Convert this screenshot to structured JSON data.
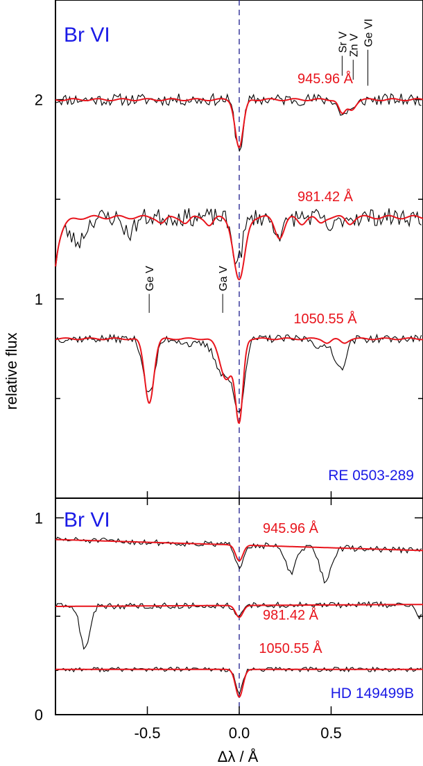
{
  "chart_data": {
    "type": "line",
    "x_axis": {
      "label": "Δλ / Å",
      "range": [
        -1.0,
        1.0
      ],
      "ticks": [
        -0.5,
        0.0,
        0.5
      ],
      "tick_labels": [
        "-0.5",
        "0.0",
        "0.5"
      ]
    },
    "y_axis_label": "relative flux",
    "reference_line_x": 0.0,
    "colors": {
      "observation": "#000000",
      "model": "#e8141c",
      "labels": "#1a1ae6",
      "reference_line": "#1a1a8c"
    },
    "panels": [
      {
        "star": "RE 0503-289",
        "ion": "Br VI",
        "ylim": [
          0.0,
          2.5
        ],
        "y_ticks": [
          1,
          2
        ],
        "y_minor_ticks": [
          0.5,
          1.5
        ],
        "tick_labels": [
          "1",
          "2"
        ],
        "lines": [
          {
            "label": "945.96 Å",
            "continuum": 2.0,
            "model_dips": [
              {
                "center": 0.0,
                "depth": 0.24,
                "width": 0.022
              },
              {
                "center": 0.56,
                "depth": 0.07,
                "width": 0.018
              },
              {
                "center": 0.61,
                "depth": 0.05,
                "width": 0.022
              }
            ],
            "model_wiggle": 0.005,
            "obs_dips": [
              {
                "center": 0.0,
                "depth": 0.25,
                "width": 0.022
              },
              {
                "center": 0.56,
                "depth": 0.08,
                "width": 0.02
              },
              {
                "center": 0.62,
                "depth": 0.05,
                "width": 0.025
              }
            ],
            "noise": 0.03,
            "seed": 11
          },
          {
            "label": "981.42 Å",
            "continuum": 1.41,
            "edge_drop": {
              "depth": 0.24,
              "scale": 0.03
            },
            "model_dips": [
              {
                "center": 0.0,
                "depth": 0.32,
                "width": 0.03
              },
              {
                "center": -0.42,
                "depth": 0.03,
                "width": 0.02
              },
              {
                "center": -0.29,
                "depth": 0.03,
                "width": 0.02
              },
              {
                "center": -0.16,
                "depth": 0.04,
                "width": 0.02
              },
              {
                "center": 0.22,
                "depth": 0.1,
                "width": 0.025
              },
              {
                "center": 0.34,
                "depth": 0.03,
                "width": 0.02
              },
              {
                "center": 0.44,
                "depth": 0.03,
                "width": 0.02
              },
              {
                "center": 0.6,
                "depth": 0.03,
                "width": 0.02
              }
            ],
            "model_wiggle": 0.008,
            "obs_dips": [
              {
                "center": -0.01,
                "depth": 0.22,
                "width": 0.028
              },
              {
                "center": -0.88,
                "depth": 0.12,
                "width": 0.04
              },
              {
                "center": -0.6,
                "depth": 0.08,
                "width": 0.03
              },
              {
                "center": 0.22,
                "depth": 0.08,
                "width": 0.03
              },
              {
                "center": 0.5,
                "depth": 0.06,
                "width": 0.03
              }
            ],
            "noise": 0.045,
            "seed": 23
          },
          {
            "label": "1050.55 Å",
            "continuum": 0.8,
            "model_dips": [
              {
                "center": 0.0,
                "depth": 0.4,
                "width": 0.02
              },
              {
                "center": -0.49,
                "depth": 0.32,
                "width": 0.025
              },
              {
                "center": -0.07,
                "depth": 0.2,
                "width": 0.035
              },
              {
                "center": 0.48,
                "depth": 0.02,
                "width": 0.02
              },
              {
                "center": 0.57,
                "depth": 0.02,
                "width": 0.02
              }
            ],
            "model_wiggle": 0.004,
            "obs_dips": [
              {
                "center": 0.0,
                "depth": 0.32,
                "width": 0.028
              },
              {
                "center": -0.49,
                "depth": 0.28,
                "width": 0.03
              },
              {
                "center": -0.08,
                "depth": 0.18,
                "width": 0.05
              },
              {
                "center": -0.25,
                "depth": 0.03,
                "width": 0.05
              },
              {
                "center": 0.55,
                "depth": 0.15,
                "width": 0.03
              },
              {
                "center": 0.45,
                "depth": 0.05,
                "width": 0.03
              }
            ],
            "noise": 0.02,
            "seed": 37
          }
        ],
        "identifications": [
          {
            "label": "Ge V",
            "x": -0.49,
            "y": 0.905,
            "tick_top": 1.025,
            "tick_bottom": 0.93
          },
          {
            "label": "Ga V",
            "x": -0.09,
            "y": 0.905,
            "tick_top": 1.025,
            "tick_bottom": 0.93
          },
          {
            "label": "Sr V",
            "x": 0.56,
            "y": 2.12,
            "tick_top": 2.22,
            "tick_bottom": 2.12
          },
          {
            "label": "Zn V",
            "x": 0.62,
            "y": 2.1,
            "tick_top": 2.2,
            "tick_bottom": 2.1
          },
          {
            "label": "Ge VI",
            "x": 0.7,
            "y": 2.07,
            "tick_top": 2.25,
            "tick_bottom": 2.07
          }
        ]
      },
      {
        "star": "HD 149499B",
        "ion": "Br VI",
        "ylim": [
          0.0,
          1.1
        ],
        "y_ticks": [
          0,
          1
        ],
        "y_minor_ticks": [
          0.5
        ],
        "tick_labels": [
          "0",
          "1"
        ],
        "lines": [
          {
            "label": "945.96 Å",
            "continuum": 0.89,
            "slope": -0.028,
            "model_dips": [
              {
                "center": 0.0,
                "depth": 0.08,
                "width": 0.02
              }
            ],
            "model_wiggle": 0.0,
            "obs_dips": [
              {
                "center": 0.0,
                "depth": 0.11,
                "width": 0.02
              },
              {
                "center": 0.28,
                "depth": 0.13,
                "width": 0.03
              },
              {
                "center": 0.47,
                "depth": 0.17,
                "width": 0.03
              }
            ],
            "noise": 0.015,
            "seed": 51
          },
          {
            "label": "981.42 Å",
            "continuum": 0.55,
            "slope": 0.005,
            "model_dips": [
              {
                "center": 0.0,
                "depth": 0.06,
                "width": 0.02
              }
            ],
            "model_wiggle": 0.0,
            "obs_dips": [
              {
                "center": 0.0,
                "depth": 0.06,
                "width": 0.02
              },
              {
                "center": -0.84,
                "depth": 0.22,
                "width": 0.025
              },
              {
                "center": 0.98,
                "depth": 0.07,
                "width": 0.02
              }
            ],
            "noise": 0.015,
            "seed": 63
          },
          {
            "label": "1050.55 Å",
            "continuum": 0.23,
            "slope": 0.0,
            "model_dips": [
              {
                "center": 0.0,
                "depth": 0.14,
                "width": 0.02
              }
            ],
            "model_wiggle": 0.0,
            "obs_dips": [
              {
                "center": 0.0,
                "depth": 0.12,
                "width": 0.02
              }
            ],
            "noise": 0.012,
            "seed": 77
          }
        ],
        "identifications": []
      }
    ]
  }
}
